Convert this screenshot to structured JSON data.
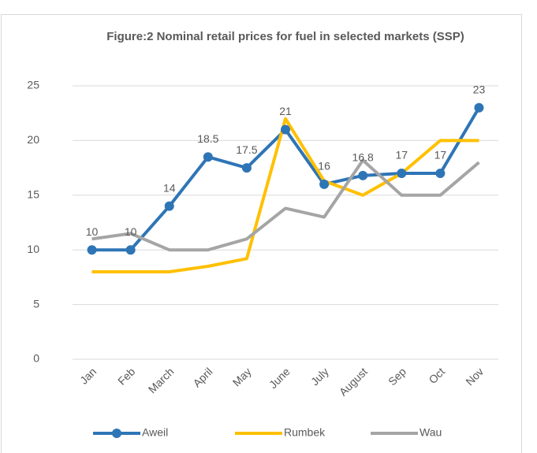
{
  "chart_data": {
    "type": "line",
    "title": "Figure:2 Nominal retail prices for fuel in selected markets (SSP)",
    "categories": [
      "Jan",
      "Feb",
      "March",
      "April",
      "May",
      "June",
      "July",
      "August",
      "Sep",
      "Oct",
      "Nov"
    ],
    "series": [
      {
        "name": "Aweil",
        "color": "#2E75B6",
        "markers": true,
        "data_labels": true,
        "values": [
          10,
          10,
          14,
          18.5,
          17.5,
          21,
          16,
          16.8,
          17,
          17,
          23
        ]
      },
      {
        "name": "Rumbek",
        "color": "#FFC000",
        "values": [
          8,
          8,
          8,
          8.5,
          9.2,
          22,
          16.3,
          15,
          17,
          20,
          20
        ]
      },
      {
        "name": "Wau",
        "color": "#A5A5A5",
        "values": [
          11,
          11.5,
          10,
          10,
          11,
          13.8,
          13,
          18.2,
          15,
          15,
          18
        ]
      }
    ],
    "ylim": [
      0,
      25
    ],
    "yticks": [
      0,
      5,
      10,
      15,
      20,
      25
    ],
    "grid": true,
    "legend": "bottom"
  }
}
